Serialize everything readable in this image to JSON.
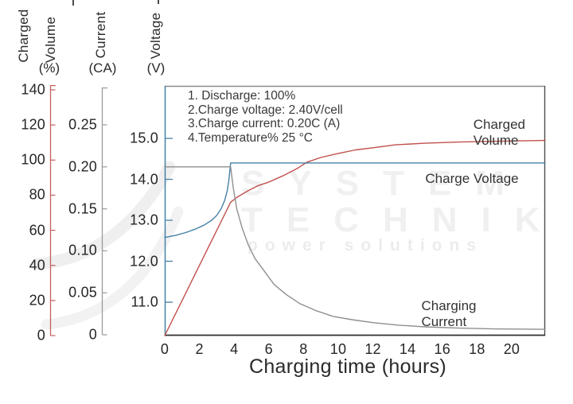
{
  "axes": {
    "volume": {
      "title_line1": "Charged",
      "title_line2": "Volume",
      "unit": "(%)",
      "tick_labels": [
        "0",
        "20",
        "40",
        "60",
        "80",
        "100",
        "120",
        "140"
      ],
      "color": "#c4605c"
    },
    "current": {
      "title": "Current",
      "unit": "(CA)",
      "tick_labels": [
        "0",
        "0.05",
        "0.10",
        "0.15",
        "0.20",
        "0.25"
      ],
      "color": "#9a9a9a"
    },
    "voltage": {
      "title": "Voltage",
      "unit": "(V)",
      "tick_labels": [
        "11.0",
        "12.0",
        "13.0",
        "14.0",
        "15.0"
      ],
      "color": "#4681a6"
    },
    "time": {
      "title": "Charging time (hours)",
      "tick_labels": [
        "0",
        "2",
        "4",
        "6",
        "8",
        "10",
        "12",
        "14",
        "16",
        "18",
        "20"
      ]
    }
  },
  "annotation": {
    "lines": [
      "1. Discharge: 100%",
      "2.Charge voltage: 2.40V/cell",
      "3.Charge current: 0.20C (A)",
      "4.Temperature% 25 °C"
    ]
  },
  "curve_labels": {
    "charged_volume": "Charged Volume",
    "charge_voltage": "Charge Voltage",
    "charging_current": "Charging Current"
  },
  "watermark": {
    "line1": "SYSTEM",
    "line2": "TECHNIK",
    "line3": "power solutions"
  },
  "chart_data": {
    "type": "line",
    "title": "",
    "x_axis": {
      "label": "Charging time (hours)",
      "ticks": [
        0,
        2,
        4,
        6,
        8,
        10,
        12,
        14,
        16,
        18,
        20
      ],
      "range": [
        0,
        21.93
      ]
    },
    "y_axes": [
      {
        "id": "volume",
        "label": "Charged Volume (%)",
        "ticks": [
          0,
          20,
          40,
          60,
          80,
          100,
          120,
          140
        ],
        "range": [
          0,
          140
        ],
        "color": "#c0504d"
      },
      {
        "id": "current",
        "label": "Current (CA)",
        "ticks": [
          0,
          0.05,
          0.1,
          0.15,
          0.2,
          0.25
        ],
        "range": [
          0,
          0.25
        ],
        "color": "#8f8f8f"
      },
      {
        "id": "voltage",
        "label": "Voltage (V)",
        "ticks": [
          11.0,
          12.0,
          13.0,
          14.0,
          15.0
        ],
        "range": [
          10.2,
          16.3
        ],
        "color": "#4681a6"
      }
    ],
    "grid": false,
    "legend_position": "inline-labels",
    "annotations": [
      "1. Discharge: 100%",
      "2.Charge voltage: 2.40V/cell",
      "3.Charge current: 0.20C (A)",
      "4.Temperature% 25 °C"
    ],
    "series": [
      {
        "name": "Charged Volume",
        "axis": "volume",
        "color": "#c0504d",
        "unit": "%",
        "points": [
          [
            0,
            0
          ],
          [
            0.5,
            10
          ],
          [
            1,
            20
          ],
          [
            1.5,
            30
          ],
          [
            2,
            40
          ],
          [
            2.5,
            50
          ],
          [
            3,
            60
          ],
          [
            3.5,
            70
          ],
          [
            3.8,
            76
          ],
          [
            4.2,
            79
          ],
          [
            4.8,
            82.5
          ],
          [
            5.4,
            85.5
          ],
          [
            6,
            87.5
          ],
          [
            6.8,
            91
          ],
          [
            7.6,
            95
          ],
          [
            8.2,
            98.8
          ],
          [
            9,
            101.5
          ],
          [
            10,
            103.8
          ],
          [
            11,
            105.8
          ],
          [
            12,
            107
          ],
          [
            13.3,
            108.7
          ],
          [
            15,
            109.6
          ],
          [
            17,
            110.3
          ],
          [
            19,
            110.7
          ],
          [
            21.93,
            111.2
          ]
        ]
      },
      {
        "name": "Charge Voltage",
        "axis": "voltage",
        "color": "#4681a6",
        "unit": "V",
        "points": [
          [
            0,
            12.58
          ],
          [
            0.6,
            12.63
          ],
          [
            1.2,
            12.7
          ],
          [
            1.8,
            12.79
          ],
          [
            2.3,
            12.89
          ],
          [
            2.7,
            13.0
          ],
          [
            3.0,
            13.12
          ],
          [
            3.25,
            13.28
          ],
          [
            3.45,
            13.48
          ],
          [
            3.6,
            13.72
          ],
          [
            3.7,
            13.98
          ],
          [
            3.76,
            14.25
          ],
          [
            3.8,
            14.4
          ],
          [
            21.93,
            14.4
          ]
        ]
      },
      {
        "name": "Charging Current",
        "axis": "current",
        "color": "#8f8f8f",
        "unit": "CA",
        "points": [
          [
            0,
            0.2
          ],
          [
            3.8,
            0.2
          ],
          [
            3.95,
            0.175
          ],
          [
            4.15,
            0.15
          ],
          [
            4.45,
            0.128
          ],
          [
            4.8,
            0.108
          ],
          [
            5.2,
            0.091
          ],
          [
            5.7,
            0.077
          ],
          [
            6.3,
            0.06
          ],
          [
            7,
            0.048
          ],
          [
            7.8,
            0.037
          ],
          [
            8.7,
            0.029
          ],
          [
            9.7,
            0.022
          ],
          [
            10.8,
            0.018
          ],
          [
            12,
            0.0145
          ],
          [
            13.5,
            0.0115
          ],
          [
            15,
            0.0095
          ],
          [
            17,
            0.008
          ],
          [
            19,
            0.007
          ],
          [
            21.93,
            0.0065
          ]
        ]
      }
    ]
  }
}
